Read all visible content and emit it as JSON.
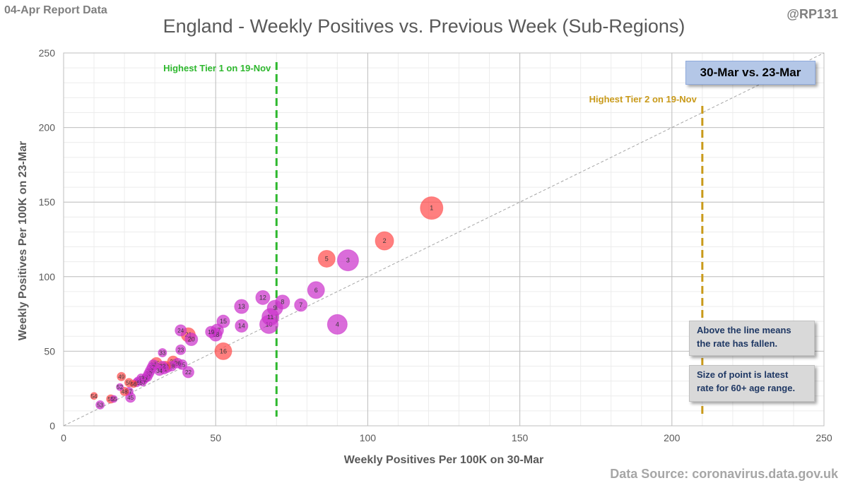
{
  "header": {
    "report_label": "04-Apr Report Data",
    "author": "@RP131"
  },
  "footer": {
    "source": "Data Source: coronavirus.data.gov.uk"
  },
  "annotations": {
    "period_label": "30-Mar vs. 23-Mar",
    "note_line": "Above the line means the rate has fallen.",
    "note_size": "Size of point is latest rate for 60+ age range."
  },
  "colors": {
    "red_point": "#ff4d4d",
    "purple_point": "#cc33cc",
    "tier1_line": "#2eb82e",
    "tier2_line": "#c99a1a",
    "grid_major": "#bfbfbf",
    "grid_minor": "#ececec"
  },
  "chart_data": {
    "type": "scatter",
    "title": "England - Weekly Positives vs. Previous Week (Sub-Regions)",
    "xlabel": "Weekly Positives Per 100K on 30-Mar",
    "ylabel": "Weekly Positives Per 100K on 23-Mar",
    "xlim": [
      0,
      250
    ],
    "ylim": [
      0,
      250
    ],
    "xticks": [
      0,
      50,
      100,
      150,
      200,
      250
    ],
    "yticks": [
      0,
      50,
      100,
      150,
      200,
      250
    ],
    "grid": true,
    "reference_line": {
      "type": "y=x",
      "label": ""
    },
    "vlines": [
      {
        "x": 70,
        "label": "Highest Tier 1 on 19-Nov",
        "color": "tier1"
      },
      {
        "x": 210,
        "label": "Highest Tier 2 on 19-Nov",
        "color": "tier2"
      }
    ],
    "size_legend": "latest rate for 60+ age range",
    "points": [
      {
        "id": "1",
        "x": 121,
        "y": 146,
        "size": 16,
        "color": "red"
      },
      {
        "id": "2",
        "x": 105.5,
        "y": 124,
        "size": 13,
        "color": "red"
      },
      {
        "id": "3",
        "x": 93.5,
        "y": 111,
        "size": 15,
        "color": "purple"
      },
      {
        "id": "4",
        "x": 90,
        "y": 68,
        "size": 14,
        "color": "purple"
      },
      {
        "id": "5",
        "x": 86.5,
        "y": 112,
        "size": 12,
        "color": "red"
      },
      {
        "id": "6",
        "x": 83,
        "y": 91,
        "size": 12,
        "color": "purple"
      },
      {
        "id": "7",
        "x": 78,
        "y": 81,
        "size": 9,
        "color": "purple"
      },
      {
        "id": "8",
        "x": 72,
        "y": 83,
        "size": 10,
        "color": "purple"
      },
      {
        "id": "9",
        "x": 69.5,
        "y": 79,
        "size": 11,
        "color": "purple"
      },
      {
        "id": "10",
        "x": 67.5,
        "y": 68,
        "size": 13,
        "color": "purple"
      },
      {
        "id": "11",
        "x": 68,
        "y": 73,
        "size": 12,
        "color": "purple"
      },
      {
        "id": "12",
        "x": 65.5,
        "y": 86,
        "size": 10,
        "color": "purple"
      },
      {
        "id": "13",
        "x": 58.5,
        "y": 80,
        "size": 10,
        "color": "purple"
      },
      {
        "id": "14",
        "x": 58.5,
        "y": 67,
        "size": 9,
        "color": "purple"
      },
      {
        "id": "15",
        "x": 52.5,
        "y": 70,
        "size": 9,
        "color": "purple"
      },
      {
        "id": "16",
        "x": 52.5,
        "y": 50,
        "size": 12,
        "color": "red"
      },
      {
        "id": "17",
        "x": 50.5,
        "y": 64,
        "size": 9,
        "color": "purple"
      },
      {
        "id": "18",
        "x": 50,
        "y": 61,
        "size": 9,
        "color": "purple"
      },
      {
        "id": "19",
        "x": 48.5,
        "y": 63,
        "size": 8,
        "color": "purple"
      },
      {
        "id": "20",
        "x": 42,
        "y": 58,
        "size": 9,
        "color": "purple"
      },
      {
        "id": "21",
        "x": 41,
        "y": 61,
        "size": 10,
        "color": "red"
      },
      {
        "id": "22",
        "x": 41,
        "y": 36,
        "size": 8,
        "color": "purple"
      },
      {
        "id": "23",
        "x": 38.5,
        "y": 51,
        "size": 7,
        "color": "purple"
      },
      {
        "id": "24",
        "x": 38.5,
        "y": 64,
        "size": 8,
        "color": "purple"
      },
      {
        "id": "25",
        "x": 39,
        "y": 41,
        "size": 7,
        "color": "purple"
      },
      {
        "id": "26",
        "x": 37.5,
        "y": 42,
        "size": 7,
        "color": "purple"
      },
      {
        "id": "27",
        "x": 36,
        "y": 43,
        "size": 8,
        "color": "red"
      },
      {
        "id": "28",
        "x": 35.5,
        "y": 40,
        "size": 7,
        "color": "purple"
      },
      {
        "id": "29",
        "x": 34,
        "y": 39,
        "size": 7,
        "color": "purple"
      },
      {
        "id": "30",
        "x": 33.5,
        "y": 40,
        "size": 7,
        "color": "red"
      },
      {
        "id": "31",
        "x": 33,
        "y": 38,
        "size": 7,
        "color": "purple"
      },
      {
        "id": "32",
        "x": 32.5,
        "y": 40,
        "size": 7,
        "color": "purple"
      },
      {
        "id": "33",
        "x": 32.5,
        "y": 49,
        "size": 6,
        "color": "purple"
      },
      {
        "id": "34",
        "x": 31.5,
        "y": 37,
        "size": 7,
        "color": "purple"
      },
      {
        "id": "35",
        "x": 30.5,
        "y": 42,
        "size": 8,
        "color": "red"
      },
      {
        "id": "36",
        "x": 29.5,
        "y": 41,
        "size": 7,
        "color": "purple"
      },
      {
        "id": "37",
        "x": 29,
        "y": 39,
        "size": 7,
        "color": "purple"
      },
      {
        "id": "38",
        "x": 28.5,
        "y": 37,
        "size": 7,
        "color": "purple"
      },
      {
        "id": "39",
        "x": 28,
        "y": 35,
        "size": 7,
        "color": "purple"
      },
      {
        "id": "40",
        "x": 27.5,
        "y": 33,
        "size": 7,
        "color": "purple"
      },
      {
        "id": "41",
        "x": 27,
        "y": 32,
        "size": 6,
        "color": "purple"
      },
      {
        "id": "42",
        "x": 26.5,
        "y": 31,
        "size": 6,
        "color": "purple"
      },
      {
        "id": "43",
        "x": 25.5,
        "y": 32,
        "size": 6,
        "color": "purple"
      },
      {
        "id": "44",
        "x": 24.5,
        "y": 30,
        "size": 6,
        "color": "purple"
      },
      {
        "id": "45",
        "x": 22,
        "y": 19,
        "size": 7,
        "color": "purple"
      },
      {
        "id": "46",
        "x": 24,
        "y": 29,
        "size": 6,
        "color": "purple"
      },
      {
        "id": "47",
        "x": 21.5,
        "y": 23,
        "size": 6,
        "color": "purple"
      },
      {
        "id": "48",
        "x": 20,
        "y": 23,
        "size": 6,
        "color": "red"
      },
      {
        "id": "49",
        "x": 19,
        "y": 33,
        "size": 6,
        "color": "red"
      },
      {
        "id": "50",
        "x": 21.5,
        "y": 29,
        "size": 6,
        "color": "red"
      },
      {
        "id": "51",
        "x": 15.5,
        "y": 18,
        "size": 6,
        "color": "red"
      },
      {
        "id": "52",
        "x": 18.5,
        "y": 26,
        "size": 5,
        "color": "purple"
      },
      {
        "id": "53",
        "x": 12,
        "y": 14,
        "size": 6,
        "color": "purple"
      },
      {
        "id": "54",
        "x": 10,
        "y": 20,
        "size": 5,
        "color": "red"
      },
      {
        "id": "55",
        "x": 16.5,
        "y": 18,
        "size": 5,
        "color": "purple"
      },
      {
        "id": "56",
        "x": 23,
        "y": 28,
        "size": 5,
        "color": "red"
      },
      {
        "id": "57",
        "x": 26,
        "y": 29,
        "size": 5,
        "color": "purple"
      }
    ]
  }
}
